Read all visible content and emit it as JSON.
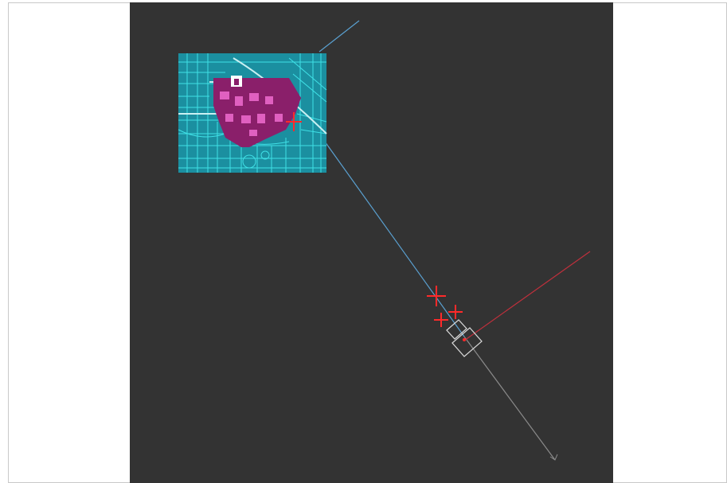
{
  "viewport": {
    "background": "#333333",
    "colors": {
      "map_base": "#1b8fa0",
      "map_lines": "#3fe0e6",
      "map_roads": "#c8f0f2",
      "map_highlight": "#8a1f6a",
      "map_pink": "#e060c0",
      "blue_line": "#5aa0d0",
      "red_line": "#c0303c",
      "gray_line": "#8a8a8a",
      "marker_red": "#ff2a2a",
      "boxes": "#d8d8d8"
    },
    "icons": [
      "crosshair-icon",
      "crosshair-icon",
      "crosshair-icon",
      "crosshair-icon",
      "viewcube-box-icon"
    ]
  }
}
